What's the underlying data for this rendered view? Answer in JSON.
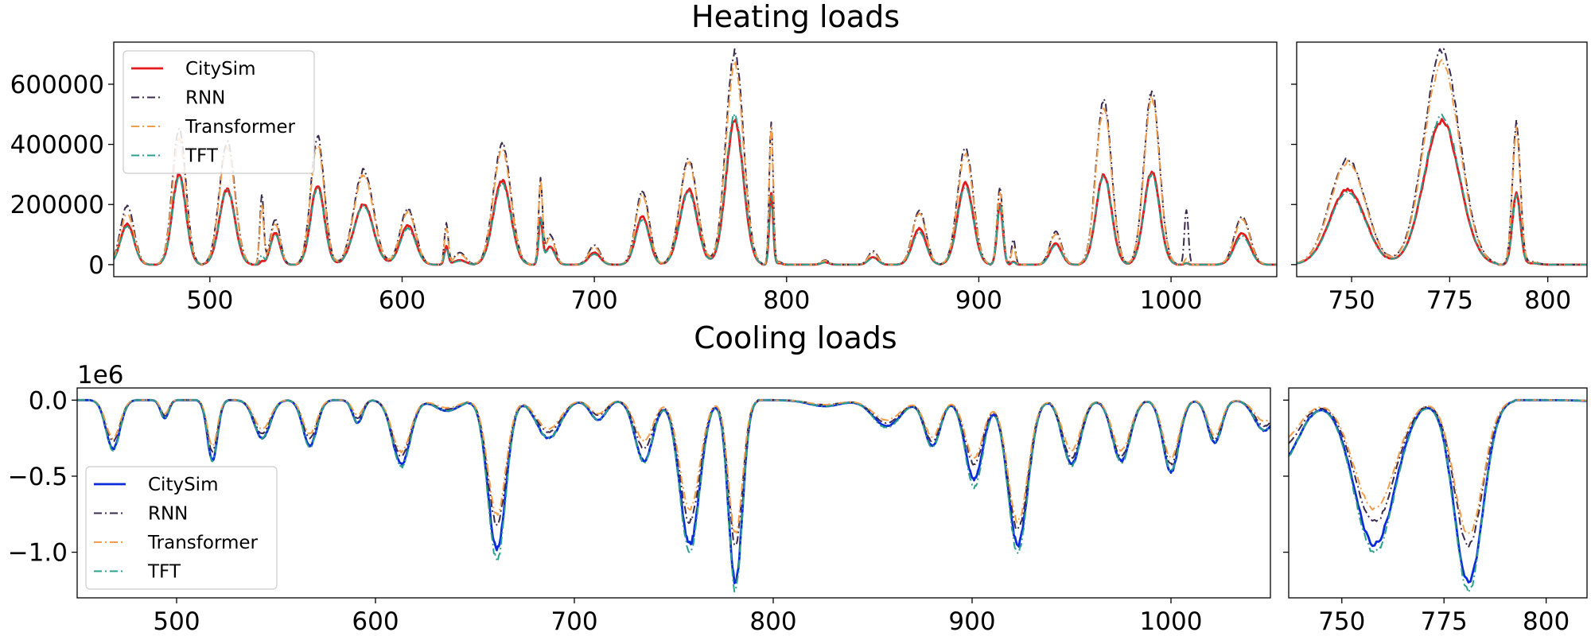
{
  "chart_data": [
    {
      "type": "line",
      "title": "Heating loads",
      "panel": "main",
      "xlim": [
        450,
        1055
      ],
      "ylim": [
        -40000,
        740000
      ],
      "xticks": [
        "500",
        "600",
        "700",
        "800",
        "900",
        "1000"
      ],
      "yticks": [
        "0",
        "200000",
        "400000",
        "600000"
      ],
      "legend": {
        "placement": "top-left",
        "entries": [
          "CitySim",
          "RNN",
          "Transformer",
          "TFT"
        ]
      },
      "grid": false,
      "peaks": [
        {
          "x": 457,
          "w": 3.5,
          "v": [
            135000,
            195000,
            170000,
            128000
          ]
        },
        {
          "x": 484,
          "w": 3.5,
          "v": [
            300000,
            450000,
            415000,
            290000
          ]
        },
        {
          "x": 509,
          "w": 4,
          "v": [
            250000,
            410000,
            390000,
            250000
          ]
        },
        {
          "x": 527,
          "w": 1,
          "v": [
            10000,
            230000,
            200000,
            30000
          ]
        },
        {
          "x": 534,
          "w": 2.5,
          "v": [
            105000,
            150000,
            135000,
            100000
          ]
        },
        {
          "x": 556,
          "w": 3.5,
          "v": [
            265000,
            425000,
            400000,
            255000
          ]
        },
        {
          "x": 580,
          "w": 5,
          "v": [
            200000,
            315000,
            300000,
            195000
          ]
        },
        {
          "x": 603,
          "w": 4,
          "v": [
            130000,
            185000,
            175000,
            120000
          ]
        },
        {
          "x": 623,
          "w": 1,
          "v": [
            60000,
            135000,
            120000,
            55000
          ]
        },
        {
          "x": 630,
          "w": 3,
          "v": [
            15000,
            40000,
            35000,
            12000
          ]
        },
        {
          "x": 652,
          "w": 4.5,
          "v": [
            280000,
            400000,
            380000,
            270000
          ]
        },
        {
          "x": 672,
          "w": 1,
          "v": [
            150000,
            270000,
            270000,
            150000
          ]
        },
        {
          "x": 677,
          "w": 2.5,
          "v": [
            60000,
            100000,
            90000,
            55000
          ]
        },
        {
          "x": 700,
          "w": 3,
          "v": [
            40000,
            65000,
            58000,
            35000
          ]
        },
        {
          "x": 725,
          "w": 3.5,
          "v": [
            160000,
            245000,
            230000,
            150000
          ]
        },
        {
          "x": 749,
          "w": 4.5,
          "v": [
            250000,
            350000,
            340000,
            240000
          ]
        },
        {
          "x": 773,
          "w": 4.5,
          "v": [
            480000,
            710000,
            670000,
            495000
          ]
        },
        {
          "x": 792,
          "w": 1,
          "v": [
            240000,
            475000,
            450000,
            230000
          ]
        },
        {
          "x": 796,
          "w": 1.5,
          "v": [
            5000,
            10000,
            8000,
            5000
          ]
        },
        {
          "x": 820,
          "w": 2,
          "v": [
            8000,
            15000,
            13000,
            7000
          ]
        },
        {
          "x": 845,
          "w": 2.5,
          "v": [
            25000,
            45000,
            40000,
            22000
          ]
        },
        {
          "x": 869,
          "w": 3.5,
          "v": [
            120000,
            180000,
            170000,
            110000
          ]
        },
        {
          "x": 893,
          "w": 4,
          "v": [
            270000,
            390000,
            370000,
            260000
          ]
        },
        {
          "x": 911,
          "w": 1.5,
          "v": [
            200000,
            255000,
            240000,
            195000
          ]
        },
        {
          "x": 918,
          "w": 1,
          "v": [
            10000,
            85000,
            60000,
            8000
          ]
        },
        {
          "x": 940,
          "w": 3,
          "v": [
            70000,
            110000,
            100000,
            65000
          ]
        },
        {
          "x": 965,
          "w": 4,
          "v": [
            300000,
            545000,
            520000,
            295000
          ]
        },
        {
          "x": 990,
          "w": 4,
          "v": [
            310000,
            575000,
            555000,
            300000
          ]
        },
        {
          "x": 1008,
          "w": 1,
          "v": [
            5000,
            185000,
            20000,
            5000
          ]
        },
        {
          "x": 1037,
          "w": 4,
          "v": [
            105000,
            160000,
            150000,
            95000
          ]
        }
      ]
    },
    {
      "type": "line",
      "title": "",
      "panel": "zoom",
      "xlim": [
        736,
        810
      ],
      "ylim": [
        -40000,
        740000
      ],
      "xticks": [
        "750",
        "775",
        "800"
      ],
      "yticks": [],
      "grid": false,
      "note": "zoomed view of heating series (same series as main panel)"
    },
    {
      "type": "line",
      "title": "Cooling loads",
      "panel": "main",
      "xlim": [
        450,
        1050
      ],
      "ylim": [
        -1.3,
        0.08
      ],
      "offset_label": "1e6",
      "xticks": [
        "500",
        "600",
        "700",
        "800",
        "900",
        "1000"
      ],
      "yticks": [
        "0.0",
        "−0.5",
        "−1.0"
      ],
      "legend": {
        "placement": "bottom-left",
        "entries": [
          "CitySim",
          "RNN",
          "Transformer",
          "TFT"
        ]
      },
      "grid": false,
      "troughs": [
        {
          "x": 468,
          "w": 3.5,
          "v": [
            -0.32,
            -0.27,
            -0.25,
            -0.33
          ]
        },
        {
          "x": 494,
          "w": 2,
          "v": [
            -0.12,
            -0.1,
            -0.09,
            -0.12
          ]
        },
        {
          "x": 518,
          "w": 2.5,
          "v": [
            -0.4,
            -0.34,
            -0.3,
            -0.4
          ]
        },
        {
          "x": 543,
          "w": 4,
          "v": [
            -0.25,
            -0.22,
            -0.19,
            -0.25
          ]
        },
        {
          "x": 567,
          "w": 3.5,
          "v": [
            -0.3,
            -0.25,
            -0.22,
            -0.31
          ]
        },
        {
          "x": 591,
          "w": 2.5,
          "v": [
            -0.15,
            -0.12,
            -0.1,
            -0.15
          ]
        },
        {
          "x": 613,
          "w": 4.5,
          "v": [
            -0.42,
            -0.37,
            -0.34,
            -0.44
          ]
        },
        {
          "x": 636,
          "w": 6,
          "v": [
            -0.07,
            -0.06,
            -0.05,
            -0.07
          ]
        },
        {
          "x": 661,
          "w": 4.5,
          "v": [
            -0.98,
            -0.82,
            -0.75,
            -1.05
          ]
        },
        {
          "x": 687,
          "w": 6,
          "v": [
            -0.25,
            -0.21,
            -0.19,
            -0.25
          ]
        },
        {
          "x": 712,
          "w": 4,
          "v": [
            -0.13,
            -0.1,
            -0.09,
            -0.13
          ]
        },
        {
          "x": 735,
          "w": 4.5,
          "v": [
            -0.4,
            -0.32,
            -0.27,
            -0.41
          ]
        },
        {
          "x": 758,
          "w": 5,
          "v": [
            -0.95,
            -0.8,
            -0.72,
            -1.0
          ]
        },
        {
          "x": 781,
          "w": 3.5,
          "v": [
            -1.2,
            -0.95,
            -0.88,
            -1.25
          ]
        },
        {
          "x": 826,
          "w": 8,
          "v": [
            -0.04,
            -0.03,
            -0.03,
            -0.04
          ]
        },
        {
          "x": 857,
          "w": 7,
          "v": [
            -0.17,
            -0.15,
            -0.13,
            -0.18
          ]
        },
        {
          "x": 880,
          "w": 4,
          "v": [
            -0.3,
            -0.27,
            -0.24,
            -0.31
          ]
        },
        {
          "x": 901,
          "w": 4.5,
          "v": [
            -0.52,
            -0.42,
            -0.38,
            -0.57
          ]
        },
        {
          "x": 923,
          "w": 5,
          "v": [
            -0.95,
            -0.85,
            -0.8,
            -1.0
          ]
        },
        {
          "x": 950,
          "w": 4.5,
          "v": [
            -0.42,
            -0.38,
            -0.33,
            -0.43
          ]
        },
        {
          "x": 975,
          "w": 4.5,
          "v": [
            -0.4,
            -0.37,
            -0.33,
            -0.41
          ]
        },
        {
          "x": 1000,
          "w": 4,
          "v": [
            -0.47,
            -0.42,
            -0.38,
            -0.47
          ]
        },
        {
          "x": 1022,
          "w": 3.5,
          "v": [
            -0.28,
            -0.26,
            -0.23,
            -0.28
          ]
        },
        {
          "x": 1047,
          "w": 5,
          "v": [
            -0.2,
            -0.17,
            -0.14,
            -0.2
          ]
        }
      ]
    },
    {
      "type": "line",
      "title": "",
      "panel": "zoom",
      "xlim": [
        737,
        810
      ],
      "ylim": [
        -1.3,
        0.08
      ],
      "xticks": [
        "750",
        "775",
        "800"
      ],
      "yticks": [],
      "grid": false,
      "note": "zoomed view of cooling series (same series as main panel)"
    }
  ],
  "series_style": [
    {
      "name": "CitySim",
      "dash": "solid"
    },
    {
      "name": "RNN",
      "dash": "dashdot"
    },
    {
      "name": "Transformer",
      "dash": "dashdot"
    },
    {
      "name": "TFT",
      "dash": "dashdot"
    }
  ],
  "colors": {
    "heating_citysim": "#e41a1c",
    "cooling_citysim": "#0a2bd9",
    "rnn": "#3b2a4f",
    "transformer": "#f39c4a",
    "tft": "#2aa08e"
  }
}
